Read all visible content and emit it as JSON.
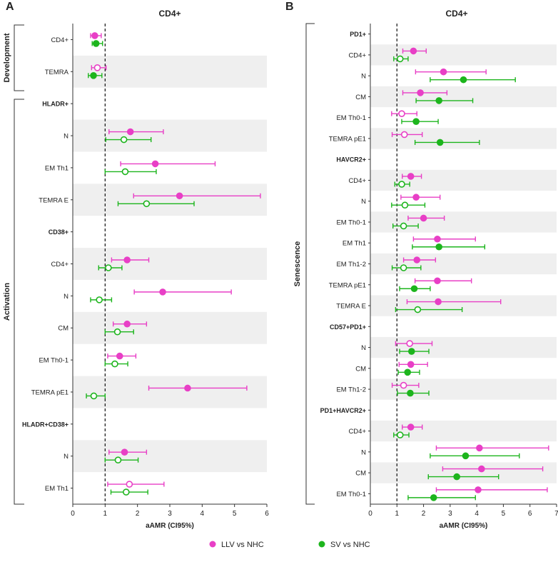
{
  "colors": {
    "llv": "#e83fc6",
    "sv": "#1db51d",
    "band": "#efefef",
    "axis": "#333333"
  },
  "legend": [
    {
      "label": "LLV vs NHC",
      "color": "#e83fc6"
    },
    {
      "label": "SV vs NHC",
      "color": "#1db51d"
    }
  ],
  "chart_data": [
    {
      "type": "forest",
      "panel_letter": "A",
      "title": "CD4+",
      "xlabel": "aAMR (CI95%)",
      "xlim": [
        0,
        6
      ],
      "xticks": [
        "0",
        "1",
        "2",
        "3",
        "4",
        "5",
        "6"
      ],
      "reference_line": 1,
      "groups": [
        {
          "name": "Development",
          "rows": [
            {
              "label": "CD4+",
              "llv": [
                0.68,
                0.55,
                0.88
              ],
              "llv_sig": true,
              "sv": [
                0.72,
                0.6,
                0.92
              ],
              "sv_sig": true
            },
            {
              "label": "TEMRA",
              "llv": [
                0.76,
                0.58,
                1.03
              ],
              "llv_sig": false,
              "sv": [
                0.64,
                0.48,
                0.9
              ],
              "sv_sig": true
            }
          ]
        },
        {
          "name": "Activation",
          "rows": [
            {
              "label": "HLADR+",
              "header": true
            },
            {
              "label": "N",
              "llv": [
                1.78,
                1.12,
                2.8
              ],
              "llv_sig": true,
              "sv": [
                1.58,
                1.02,
                2.42
              ],
              "sv_sig": false
            },
            {
              "label": "EM Th1",
              "llv": [
                2.55,
                1.48,
                4.4
              ],
              "llv_sig": true,
              "sv": [
                1.62,
                1.0,
                2.58
              ],
              "sv_sig": false
            },
            {
              "label": "TEMRA E",
              "llv": [
                3.3,
                1.88,
                5.8
              ],
              "llv_sig": true,
              "sv": [
                2.28,
                1.4,
                3.75
              ],
              "sv_sig": false
            },
            {
              "label": "CD38+",
              "header": true
            },
            {
              "label": "CD4+",
              "llv": [
                1.68,
                1.2,
                2.35
              ],
              "llv_sig": true,
              "sv": [
                1.1,
                0.8,
                1.52
              ],
              "sv_sig": false
            },
            {
              "label": "N",
              "llv": [
                2.78,
                1.9,
                4.9
              ],
              "llv_sig": true,
              "sv": [
                0.82,
                0.55,
                1.2
              ],
              "sv_sig": false
            },
            {
              "label": "CM",
              "llv": [
                1.68,
                1.25,
                2.28
              ],
              "llv_sig": true,
              "sv": [
                1.38,
                1.0,
                1.88
              ],
              "sv_sig": false
            },
            {
              "label": "EM Th0-1",
              "llv": [
                1.45,
                1.08,
                1.95
              ],
              "llv_sig": true,
              "sv": [
                1.3,
                1.0,
                1.7
              ],
              "sv_sig": false
            },
            {
              "label": "TEMRA pE1",
              "llv": [
                3.55,
                2.35,
                5.38
              ],
              "llv_sig": true,
              "sv": [
                0.65,
                0.42,
                1.0
              ],
              "sv_sig": false
            },
            {
              "label": "HLADR+CD38+",
              "header": true
            },
            {
              "label": "N",
              "llv": [
                1.6,
                1.12,
                2.28
              ],
              "llv_sig": true,
              "sv": [
                1.4,
                1.0,
                2.02
              ],
              "sv_sig": false
            },
            {
              "label": "EM Th1",
              "llv": [
                1.75,
                1.08,
                2.82
              ],
              "llv_sig": false,
              "sv": [
                1.65,
                1.18,
                2.32
              ],
              "sv_sig": false
            }
          ]
        }
      ]
    },
    {
      "type": "forest",
      "panel_letter": "B",
      "title": "CD4+",
      "xlabel": "aAMR (CI95%)",
      "xlim": [
        0,
        7
      ],
      "xticks": [
        "0",
        "1",
        "2",
        "3",
        "4",
        "5",
        "6",
        "7"
      ],
      "reference_line": 1,
      "groups": [
        {
          "name": "Senescence",
          "rows": [
            {
              "label": "PD1+",
              "header": true
            },
            {
              "label": "CD4+",
              "llv": [
                1.62,
                1.22,
                2.1
              ],
              "llv_sig": true,
              "sv": [
                1.12,
                0.88,
                1.42
              ],
              "sv_sig": false
            },
            {
              "label": "N",
              "llv": [
                2.75,
                1.7,
                4.35
              ],
              "llv_sig": true,
              "sv": [
                3.5,
                2.25,
                5.45
              ],
              "sv_sig": true
            },
            {
              "label": "CM",
              "llv": [
                1.88,
                1.22,
                2.88
              ],
              "llv_sig": true,
              "sv": [
                2.58,
                1.72,
                3.85
              ],
              "sv_sig": true
            },
            {
              "label": "EM Th0-1",
              "llv": [
                1.18,
                0.8,
                1.75
              ],
              "llv_sig": false,
              "sv": [
                1.72,
                1.18,
                2.55
              ],
              "sv_sig": true
            },
            {
              "label": "TEMRA pE1",
              "llv": [
                1.28,
                0.82,
                1.95
              ],
              "llv_sig": false,
              "sv": [
                2.62,
                1.68,
                4.1
              ],
              "sv_sig": true
            },
            {
              "label": "HAVCR2+",
              "header": true
            },
            {
              "label": "CD4+",
              "llv": [
                1.52,
                1.2,
                1.92
              ],
              "llv_sig": true,
              "sv": [
                1.18,
                0.92,
                1.48
              ],
              "sv_sig": false
            },
            {
              "label": "N",
              "llv": [
                1.72,
                1.15,
                2.62
              ],
              "llv_sig": true,
              "sv": [
                1.3,
                0.8,
                2.05
              ],
              "sv_sig": false
            },
            {
              "label": "EM Th0-1",
              "llv": [
                2.0,
                1.42,
                2.78
              ],
              "llv_sig": true,
              "sv": [
                1.25,
                0.85,
                1.8
              ],
              "sv_sig": false
            },
            {
              "label": "EM Th1",
              "llv": [
                2.52,
                1.62,
                3.95
              ],
              "llv_sig": true,
              "sv": [
                2.58,
                1.58,
                4.3
              ],
              "sv_sig": true
            },
            {
              "label": "EM Th1-2",
              "llv": [
                1.75,
                1.25,
                2.45
              ],
              "llv_sig": true,
              "sv": [
                1.25,
                0.82,
                1.9
              ],
              "sv_sig": false
            },
            {
              "label": "TEMRA pE1",
              "llv": [
                2.52,
                1.68,
                3.8
              ],
              "llv_sig": true,
              "sv": [
                1.65,
                1.1,
                2.25
              ],
              "sv_sig": true
            },
            {
              "label": "TEMRA E",
              "llv": [
                2.55,
                1.38,
                4.9
              ],
              "llv_sig": true,
              "sv": [
                1.78,
                0.95,
                3.45
              ],
              "sv_sig": false
            },
            {
              "label": "CD57+PD1+",
              "header": true
            },
            {
              "label": "N",
              "llv": [
                1.48,
                0.95,
                2.32
              ],
              "llv_sig": false,
              "sv": [
                1.55,
                1.1,
                2.2
              ],
              "sv_sig": true
            },
            {
              "label": "CM",
              "llv": [
                1.52,
                1.08,
                2.15
              ],
              "llv_sig": true,
              "sv": [
                1.4,
                1.05,
                1.85
              ],
              "sv_sig": true
            },
            {
              "label": "EM Th1-2",
              "llv": [
                1.25,
                0.82,
                1.82
              ],
              "llv_sig": false,
              "sv": [
                1.5,
                1.02,
                2.2
              ],
              "sv_sig": true
            },
            {
              "label": "PD1+HAVCR2+",
              "header": true
            },
            {
              "label": "CD4+",
              "llv": [
                1.52,
                1.2,
                1.95
              ],
              "llv_sig": true,
              "sv": [
                1.12,
                0.88,
                1.45
              ],
              "sv_sig": false
            },
            {
              "label": "N",
              "llv": [
                4.1,
                2.48,
                6.7
              ],
              "llv_sig": true,
              "sv": [
                3.58,
                2.25,
                5.6
              ],
              "sv_sig": true
            },
            {
              "label": "CM",
              "llv": [
                4.18,
                2.72,
                6.48
              ],
              "llv_sig": true,
              "sv": [
                3.25,
                2.18,
                4.82
              ],
              "sv_sig": true
            },
            {
              "label": "EM Th0-1",
              "llv": [
                4.05,
                2.48,
                6.65
              ],
              "llv_sig": true,
              "sv": [
                2.38,
                1.42,
                3.95
              ],
              "sv_sig": true
            }
          ]
        }
      ]
    }
  ]
}
